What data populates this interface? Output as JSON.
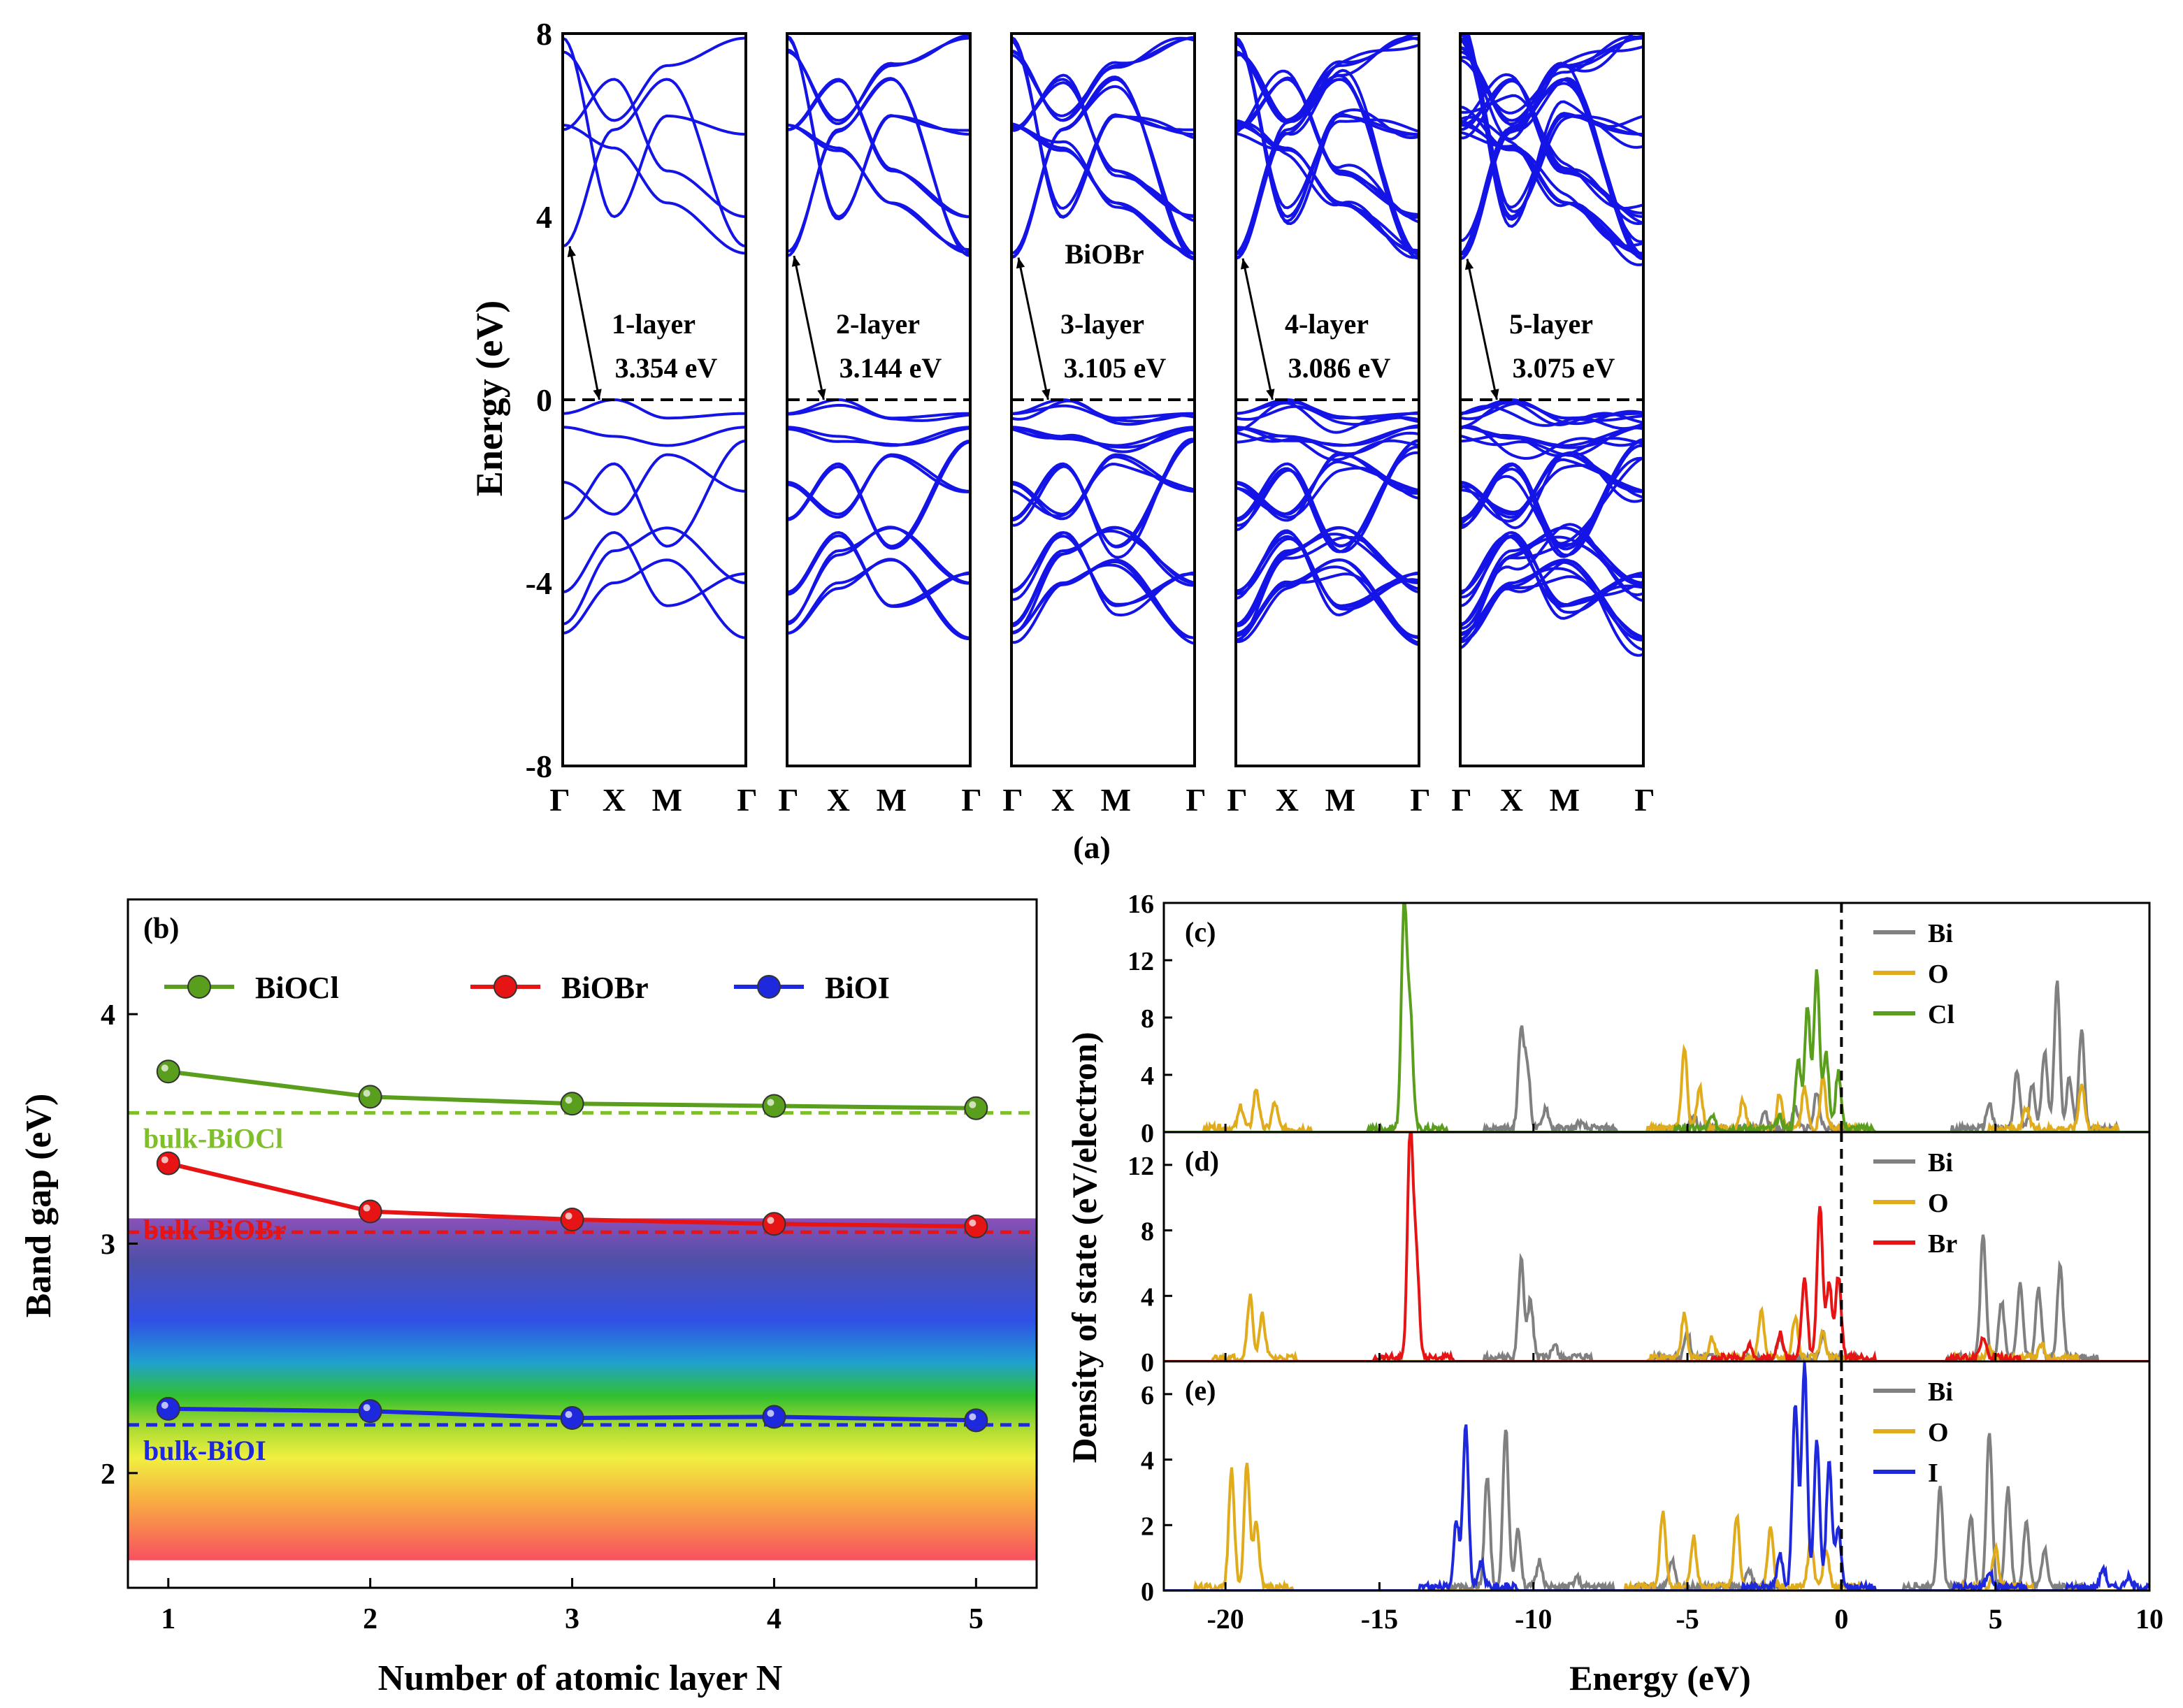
{
  "chart_data": [
    {
      "id": "a",
      "type": "line",
      "panel_label": "(a)",
      "ylabel": "Energy (eV)",
      "ylim": [
        -8,
        8
      ],
      "yticks": [
        "8",
        "4",
        "0",
        "-4",
        "-8"
      ],
      "ytick_values": [
        8,
        4,
        0,
        -4,
        -8
      ],
      "kpath": [
        "Γ",
        "X",
        "M",
        "Γ"
      ],
      "kpath_fractions": [
        0,
        0.28,
        0.57,
        1
      ],
      "fermi_level": 0,
      "material": "BiOBr",
      "band_color": "#1414e6",
      "panels": [
        {
          "layer": "1-layer",
          "gap": "3.354 eV",
          "cbm": 3.354,
          "nbands": 1
        },
        {
          "layer": "2-layer",
          "gap": "3.144 eV",
          "cbm": 3.144,
          "nbands": 2
        },
        {
          "layer": "3-layer",
          "gap": "3.105 eV",
          "cbm": 3.105,
          "nbands": 3
        },
        {
          "layer": "4-layer",
          "gap": "3.086 eV",
          "cbm": 3.086,
          "nbands": 4
        },
        {
          "layer": "5-layer",
          "gap": "3.075 eV",
          "cbm": 3.075,
          "nbands": 5
        }
      ]
    },
    {
      "id": "b",
      "type": "line",
      "panel_label": "(b)",
      "xlabel": "Number of atomic layer N",
      "ylabel": "Band gap (eV)",
      "xlim": [
        0.8,
        5.3
      ],
      "ylim": [
        1.5,
        4.5
      ],
      "xticks": [
        1,
        2,
        3,
        4,
        5
      ],
      "yticks": [
        2,
        3,
        4
      ],
      "x": [
        1,
        2,
        3,
        4,
        5
      ],
      "series": [
        {
          "name": "BiOCl",
          "color": "#5a9e1e",
          "values": [
            3.75,
            3.64,
            3.61,
            3.6,
            3.59
          ]
        },
        {
          "name": "BiOBr",
          "color": "#e61414",
          "values": [
            3.35,
            3.14,
            3.105,
            3.086,
            3.075
          ]
        },
        {
          "name": "BiOI",
          "color": "#1e28dc",
          "values": [
            2.28,
            2.27,
            2.24,
            2.245,
            2.23
          ]
        }
      ],
      "references": [
        {
          "label": "bulk-BiOCl",
          "value": 3.57,
          "color": "#7fbf2a"
        },
        {
          "label": "bulk-BiOBr",
          "value": 3.05,
          "color": "#e61414"
        },
        {
          "label": "bulk-BiOI",
          "value": 2.21,
          "color": "#1e28dc"
        }
      ],
      "spectrum_band": [
        1.62,
        3.11
      ],
      "legend": "top"
    },
    {
      "id": "cde",
      "type": "line",
      "xlabel": "Energy (eV)",
      "ylabel": "Density of state (eV/electron)",
      "xlim": [
        -22,
        10
      ],
      "xticks": [
        -20,
        -15,
        -10,
        -5,
        0,
        5,
        10
      ],
      "fermi_level": 0,
      "panels": [
        {
          "panel_label": "(c)",
          "ylim": [
            0,
            16
          ],
          "yticks": [
            0,
            4,
            8,
            12,
            16
          ],
          "series": [
            {
              "name": "Bi",
              "color": "#808080",
              "peaks": [
                [
                  -10.4,
                  6.8
                ],
                [
                  -10.2,
                  4.2
                ],
                [
                  -9.6,
                  1.5
                ],
                [
                  -8.5,
                  0.4
                ],
                [
                  -4.8,
                  1.0
                ],
                [
                  -2.5,
                  1.2
                ],
                [
                  -1.5,
                  1.5
                ],
                [
                  -0.8,
                  2.5
                ],
                [
                  4.8,
                  1.8
                ],
                [
                  5.7,
                  4.0
                ],
                [
                  6.2,
                  3.2
                ],
                [
                  6.6,
                  5.5
                ],
                [
                  7.0,
                  10.3
                ],
                [
                  7.4,
                  3.5
                ],
                [
                  7.8,
                  6.8
                ]
              ]
            },
            {
              "name": "O",
              "color": "#e0ac1c",
              "peaks": [
                [
                  -19.5,
                  1.5
                ],
                [
                  -19.0,
                  2.8
                ],
                [
                  -18.4,
                  1.8
                ],
                [
                  -5.1,
                  5.6
                ],
                [
                  -4.6,
                  3.0
                ],
                [
                  -3.2,
                  2.0
                ],
                [
                  -2.0,
                  2.5
                ],
                [
                  -1.2,
                  2.8
                ],
                [
                  -0.6,
                  3.6
                ],
                [
                  6.0,
                  1.5
                ],
                [
                  7.8,
                  3.2
                ]
              ]
            },
            {
              "name": "Cl",
              "color": "#5a9e1e",
              "peaks": [
                [
                  -14.2,
                  15.3
                ],
                [
                  -14.0,
                  7.8
                ],
                [
                  -4.2,
                  0.8
                ],
                [
                  -2.0,
                  0.8
                ],
                [
                  -1.4,
                  4.8
                ],
                [
                  -1.1,
                  8.5
                ],
                [
                  -0.8,
                  11.0
                ],
                [
                  -0.5,
                  5.2
                ],
                [
                  -0.1,
                  4.0
                ]
              ]
            }
          ]
        },
        {
          "panel_label": "(d)",
          "ylim": [
            0,
            14
          ],
          "yticks": [
            0,
            4,
            8,
            12
          ],
          "series": [
            {
              "name": "Bi",
              "color": "#808080",
              "peaks": [
                [
                  -10.4,
                  6.0
                ],
                [
                  -10.1,
                  3.5
                ],
                [
                  -9.3,
                  0.8
                ],
                [
                  -5.0,
                  1.5
                ],
                [
                  -2.0,
                  1.2
                ],
                [
                  -0.6,
                  1.5
                ],
                [
                  4.6,
                  7.5
                ],
                [
                  5.2,
                  3.4
                ],
                [
                  5.8,
                  4.6
                ],
                [
                  6.4,
                  4.2
                ],
                [
                  7.1,
                  5.6
                ]
              ]
            },
            {
              "name": "O",
              "color": "#e0ac1c",
              "peaks": [
                [
                  -19.2,
                  3.8
                ],
                [
                  -18.8,
                  2.6
                ],
                [
                  -5.1,
                  2.8
                ],
                [
                  -4.2,
                  1.2
                ],
                [
                  -2.6,
                  2.8
                ],
                [
                  -1.5,
                  2.5
                ],
                [
                  -0.6,
                  1.5
                ],
                [
                  4.8,
                  0.6
                ],
                [
                  6.5,
                  0.8
                ]
              ]
            },
            {
              "name": "Br",
              "color": "#e61414",
              "peaks": [
                [
                  -14.0,
                  13.8
                ],
                [
                  -13.8,
                  6.0
                ],
                [
                  -3.0,
                  0.8
                ],
                [
                  -2.0,
                  1.5
                ],
                [
                  -1.2,
                  4.8
                ],
                [
                  -0.7,
                  9.3
                ],
                [
                  -0.4,
                  4.5
                ],
                [
                  -0.1,
                  5.0
                ],
                [
                  4.6,
                  1.2
                ]
              ]
            }
          ]
        },
        {
          "panel_label": "(e)",
          "ylim": [
            0,
            7
          ],
          "yticks": [
            0,
            2,
            4,
            6
          ],
          "series": [
            {
              "name": "Bi",
              "color": "#808080",
              "peaks": [
                [
                  -11.5,
                  3.4
                ],
                [
                  -10.9,
                  4.9
                ],
                [
                  -10.5,
                  1.8
                ],
                [
                  -9.8,
                  0.8
                ],
                [
                  -8.6,
                  0.3
                ],
                [
                  -5.5,
                  0.8
                ],
                [
                  -3.0,
                  0.5
                ],
                [
                  3.2,
                  3.0
                ],
                [
                  4.2,
                  2.2
                ],
                [
                  4.8,
                  4.8
                ],
                [
                  5.4,
                  3.0
                ],
                [
                  6.0,
                  2.0
                ],
                [
                  6.6,
                  1.2
                ]
              ]
            },
            {
              "name": "O",
              "color": "#e0ac1c",
              "peaks": [
                [
                  -19.8,
                  3.6
                ],
                [
                  -19.3,
                  3.8
                ],
                [
                  -19.0,
                  2.0
                ],
                [
                  -5.8,
                  2.3
                ],
                [
                  -4.8,
                  1.5
                ],
                [
                  -3.4,
                  2.2
                ],
                [
                  -2.3,
                  1.8
                ],
                [
                  -1.0,
                  1.4
                ],
                [
                  -0.5,
                  1.2
                ],
                [
                  5.0,
                  1.2
                ]
              ]
            },
            {
              "name": "I",
              "color": "#1e28dc",
              "peaks": [
                [
                  -12.5,
                  2.0
                ],
                [
                  -12.2,
                  4.9
                ],
                [
                  -11.7,
                  0.8
                ],
                [
                  -2.0,
                  1.0
                ],
                [
                  -1.5,
                  5.6
                ],
                [
                  -1.2,
                  6.8
                ],
                [
                  -0.8,
                  4.5
                ],
                [
                  -0.4,
                  3.8
                ],
                [
                  -0.1,
                  1.8
                ],
                [
                  4.8,
                  0.5
                ],
                [
                  8.5,
                  0.6
                ],
                [
                  9.3,
                  0.3
                ]
              ]
            }
          ]
        }
      ]
    }
  ]
}
